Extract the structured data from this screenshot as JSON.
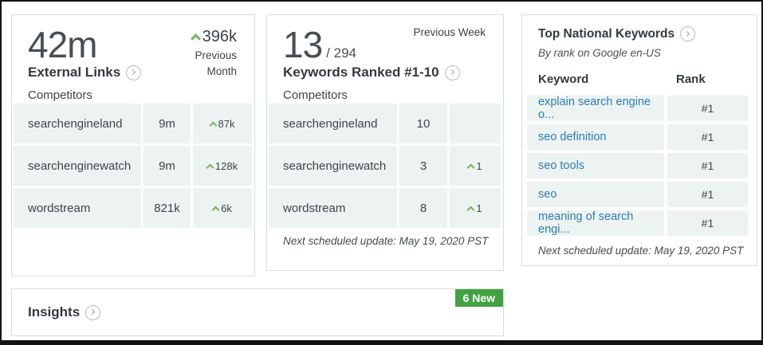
{
  "colors": {
    "caret_green": "#6fb654",
    "badge_green": "#42a242",
    "link_blue": "#2b7cb8",
    "row_bg": "#edf3f1",
    "card_border": "#d8dcdd"
  },
  "external_links": {
    "big_value": "42m",
    "change_value": "396k",
    "change_period": "Previous Month",
    "title": "External Links",
    "competitors_label": "Competitors",
    "rows": [
      {
        "name": "searchengineland",
        "value": "9m",
        "change": "87k"
      },
      {
        "name": "searchenginewatch",
        "value": "9m",
        "change": "128k"
      },
      {
        "name": "wordstream",
        "value": "821k",
        "change": "6k"
      }
    ]
  },
  "keywords_ranked": {
    "big_value": "13",
    "total": "/ 294",
    "period_label": "Previous Week",
    "title": "Keywords Ranked #1-10",
    "competitors_label": "Competitors",
    "rows": [
      {
        "name": "searchengineland",
        "value": "10",
        "change": ""
      },
      {
        "name": "searchenginewatch",
        "value": "3",
        "change": "1"
      },
      {
        "name": "wordstream",
        "value": "8",
        "change": "1"
      }
    ],
    "footer": "Next scheduled update: May 19, 2020 PST"
  },
  "top_keywords": {
    "title": "Top National Keywords",
    "subtitle": "By rank on Google en-US",
    "col_keyword": "Keyword",
    "col_rank": "Rank",
    "rows": [
      {
        "keyword": "explain search engine o...",
        "rank": "#1"
      },
      {
        "keyword": "seo definition",
        "rank": "#1"
      },
      {
        "keyword": "seo tools",
        "rank": "#1"
      },
      {
        "keyword": "seo",
        "rank": "#1"
      },
      {
        "keyword": "meaning of search engi...",
        "rank": "#1"
      }
    ],
    "footer": "Next scheduled update: May 19, 2020 PST"
  },
  "insights": {
    "title": "Insights",
    "badge": "6 New"
  }
}
